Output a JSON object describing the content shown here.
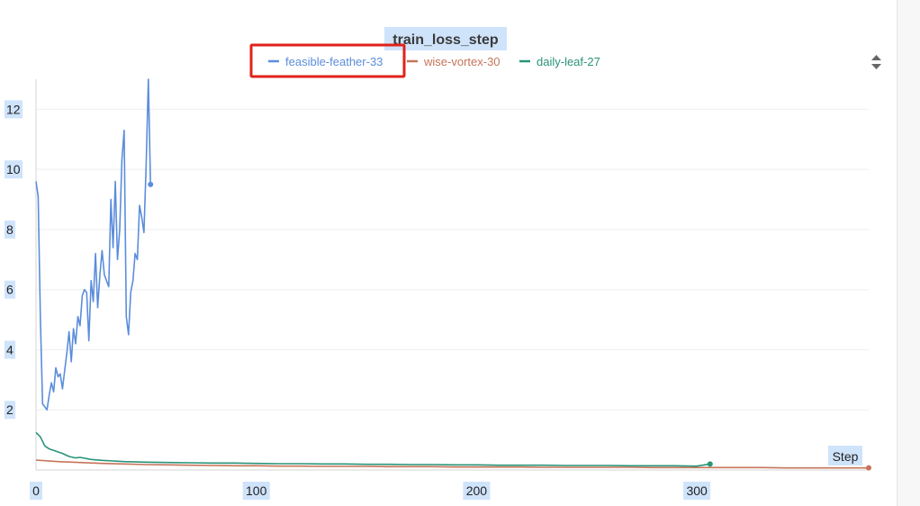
{
  "chart_data": {
    "type": "line",
    "title": "train_loss_step",
    "xlabel": "Step",
    "ylabel": "",
    "xlim": [
      0,
      378
    ],
    "ylim": [
      0,
      13
    ],
    "x_ticks": [
      0,
      100,
      200,
      300
    ],
    "y_ticks": [
      2,
      4,
      6,
      8,
      10,
      12
    ],
    "grid": true,
    "legend_position": "top",
    "series": [
      {
        "name": "feasible-feather-33",
        "color": "#5b8ddc",
        "points": [
          [
            0,
            9.6
          ],
          [
            1,
            9.1
          ],
          [
            2,
            5.0
          ],
          [
            3,
            2.2
          ],
          [
            4,
            2.1
          ],
          [
            5,
            2.0
          ],
          [
            6,
            2.5
          ],
          [
            7,
            2.9
          ],
          [
            8,
            2.6
          ],
          [
            9,
            3.4
          ],
          [
            10,
            3.1
          ],
          [
            11,
            3.2
          ],
          [
            12,
            2.7
          ],
          [
            13,
            3.3
          ],
          [
            14,
            3.9
          ],
          [
            15,
            4.6
          ],
          [
            16,
            3.6
          ],
          [
            17,
            4.7
          ],
          [
            18,
            4.2
          ],
          [
            19,
            5.1
          ],
          [
            20,
            4.8
          ],
          [
            21,
            5.8
          ],
          [
            22,
            6.0
          ],
          [
            23,
            5.9
          ],
          [
            24,
            4.3
          ],
          [
            25,
            6.3
          ],
          [
            26,
            5.6
          ],
          [
            27,
            7.2
          ],
          [
            28,
            5.4
          ],
          [
            29,
            6.5
          ],
          [
            30,
            7.3
          ],
          [
            31,
            6.5
          ],
          [
            32,
            6.3
          ],
          [
            33,
            6.1
          ],
          [
            34,
            9.0
          ],
          [
            35,
            7.4
          ],
          [
            36,
            9.6
          ],
          [
            37,
            7.0
          ],
          [
            38,
            8.0
          ],
          [
            39,
            10.3
          ],
          [
            40,
            11.3
          ],
          [
            41,
            5.1
          ],
          [
            42,
            4.5
          ],
          [
            43,
            5.9
          ],
          [
            44,
            6.3
          ],
          [
            45,
            7.2
          ],
          [
            46,
            7.0
          ],
          [
            47,
            8.8
          ],
          [
            48,
            8.4
          ],
          [
            49,
            7.9
          ],
          [
            50,
            10.2
          ],
          [
            51,
            13.0
          ],
          [
            52,
            9.5
          ]
        ]
      },
      {
        "name": "wise-vortex-30",
        "color": "#c5745a",
        "points": [
          [
            0,
            0.33
          ],
          [
            10,
            0.28
          ],
          [
            20,
            0.25
          ],
          [
            30,
            0.22
          ],
          [
            40,
            0.2
          ],
          [
            50,
            0.18
          ],
          [
            60,
            0.17
          ],
          [
            70,
            0.16
          ],
          [
            80,
            0.15
          ],
          [
            90,
            0.14
          ],
          [
            100,
            0.14
          ],
          [
            110,
            0.13
          ],
          [
            120,
            0.13
          ],
          [
            130,
            0.12
          ],
          [
            140,
            0.12
          ],
          [
            150,
            0.12
          ],
          [
            160,
            0.11
          ],
          [
            170,
            0.11
          ],
          [
            180,
            0.11
          ],
          [
            190,
            0.1
          ],
          [
            200,
            0.1
          ],
          [
            210,
            0.1
          ],
          [
            220,
            0.1
          ],
          [
            230,
            0.09
          ],
          [
            240,
            0.09
          ],
          [
            250,
            0.09
          ],
          [
            260,
            0.09
          ],
          [
            270,
            0.09
          ],
          [
            280,
            0.08
          ],
          [
            290,
            0.08
          ],
          [
            300,
            0.08
          ],
          [
            310,
            0.08
          ],
          [
            320,
            0.08
          ],
          [
            330,
            0.08
          ],
          [
            340,
            0.07
          ],
          [
            350,
            0.07
          ],
          [
            360,
            0.07
          ],
          [
            370,
            0.07
          ],
          [
            378,
            0.07
          ]
        ]
      },
      {
        "name": "daily-leaf-27",
        "color": "#2a9479",
        "points": [
          [
            0,
            1.25
          ],
          [
            2,
            1.1
          ],
          [
            4,
            0.8
          ],
          [
            6,
            0.7
          ],
          [
            8,
            0.65
          ],
          [
            10,
            0.6
          ],
          [
            12,
            0.55
          ],
          [
            15,
            0.45
          ],
          [
            18,
            0.4
          ],
          [
            20,
            0.42
          ],
          [
            25,
            0.35
          ],
          [
            30,
            0.32
          ],
          [
            35,
            0.3
          ],
          [
            40,
            0.28
          ],
          [
            50,
            0.26
          ],
          [
            60,
            0.25
          ],
          [
            70,
            0.24
          ],
          [
            80,
            0.23
          ],
          [
            90,
            0.23
          ],
          [
            100,
            0.22
          ],
          [
            110,
            0.21
          ],
          [
            120,
            0.21
          ],
          [
            130,
            0.2
          ],
          [
            140,
            0.2
          ],
          [
            150,
            0.19
          ],
          [
            160,
            0.19
          ],
          [
            170,
            0.18
          ],
          [
            180,
            0.18
          ],
          [
            190,
            0.17
          ],
          [
            200,
            0.17
          ],
          [
            210,
            0.16
          ],
          [
            220,
            0.16
          ],
          [
            230,
            0.16
          ],
          [
            240,
            0.15
          ],
          [
            250,
            0.15
          ],
          [
            260,
            0.15
          ],
          [
            270,
            0.14
          ],
          [
            280,
            0.14
          ],
          [
            290,
            0.14
          ],
          [
            300,
            0.13
          ],
          [
            306,
            0.2
          ]
        ]
      }
    ]
  }
}
